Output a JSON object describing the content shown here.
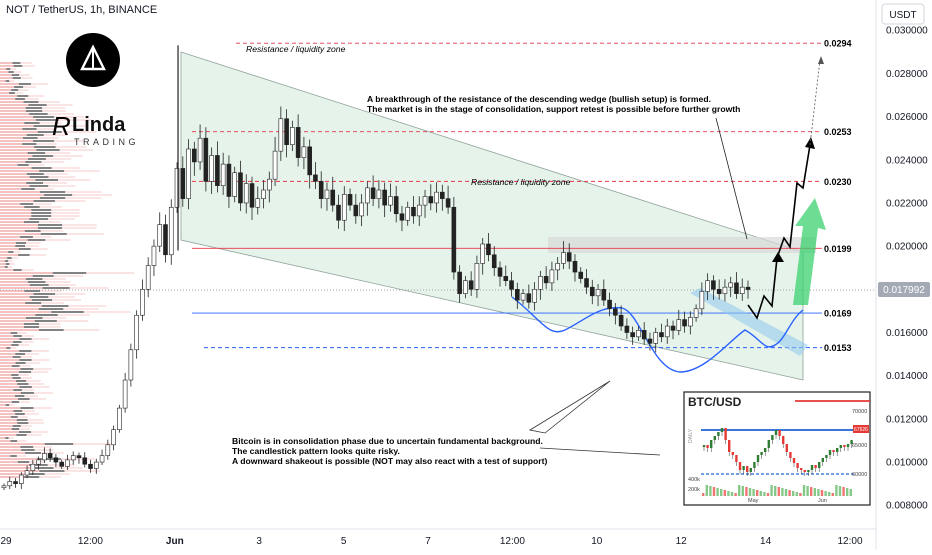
{
  "header": {
    "symbol": "NOT / TetherUS, 1h, BINANCE"
  },
  "currency_badge": "USDT",
  "brand": {
    "name": "Linda",
    "sub": "TRADING"
  },
  "chart_data": {
    "type": "candlestick",
    "title": "NOT / TetherUS, 1h, BINANCE",
    "yaxis": {
      "unit": "USDT",
      "ylim": [
        0.0069,
        0.0314
      ],
      "ticks": [
        "0.030000",
        "0.028000",
        "0.026000",
        "0.024000",
        "0.022000",
        "0.020000",
        "0.018000",
        "0.016000",
        "0.014000",
        "0.012000",
        "0.010000",
        "0.008000"
      ],
      "tick_values": [
        0.03,
        0.028,
        0.026,
        0.024,
        0.022,
        0.02,
        0.018,
        0.016,
        0.014,
        0.012,
        0.01,
        0.008
      ]
    },
    "xaxis": {
      "ticks": [
        "29",
        "12:00",
        "Jun",
        "3",
        "5",
        "7",
        "12:00",
        "10",
        "12",
        "14",
        "12:00"
      ]
    },
    "last_price": "0.017992",
    "levels": [
      {
        "value": 0.0294,
        "label": "0.0294",
        "style": "dashed",
        "color": "#e8374a"
      },
      {
        "value": 0.0253,
        "label": "0.0253",
        "style": "dashed",
        "color": "#e8374a"
      },
      {
        "value": 0.023,
        "label": "0.0230",
        "style": "dashed",
        "color": "#e8374a"
      },
      {
        "value": 0.0199,
        "label": "0.0199",
        "style": "solid",
        "color": "#e8374a"
      },
      {
        "value": 0.0169,
        "label": "0.0169",
        "style": "solid",
        "color": "#2962ff"
      },
      {
        "value": 0.0153,
        "label": "0.0153",
        "style": "dashed",
        "color": "#2962ff"
      }
    ],
    "closes": [
      0.0089,
      0.0091,
      0.009,
      0.0094,
      0.0096,
      0.0099,
      0.0101,
      0.0104,
      0.0102,
      0.01,
      0.0098,
      0.0101,
      0.0103,
      0.0102,
      0.0099,
      0.0097,
      0.01,
      0.0103,
      0.0108,
      0.0115,
      0.0125,
      0.0138,
      0.0152,
      0.0168,
      0.018,
      0.0191,
      0.02,
      0.021,
      0.0196,
      0.0218,
      0.0236,
      0.0222,
      0.0245,
      0.0239,
      0.025,
      0.023,
      0.0242,
      0.0228,
      0.0238,
      0.0223,
      0.0234,
      0.022,
      0.0229,
      0.0218,
      0.0222,
      0.0226,
      0.0231,
      0.0244,
      0.0259,
      0.0247,
      0.0255,
      0.0241,
      0.0246,
      0.0233,
      0.023,
      0.0222,
      0.0226,
      0.0219,
      0.0212,
      0.0224,
      0.0219,
      0.0214,
      0.022,
      0.0227,
      0.0222,
      0.0226,
      0.0219,
      0.0223,
      0.0215,
      0.0212,
      0.0218,
      0.0214,
      0.0219,
      0.0223,
      0.022,
      0.0225,
      0.0222,
      0.0218,
      0.0188,
      0.0178,
      0.0184,
      0.018,
      0.0192,
      0.0201,
      0.0196,
      0.019,
      0.0186,
      0.0184,
      0.018,
      0.0175,
      0.0178,
      0.0174,
      0.018,
      0.0186,
      0.0183,
      0.0189,
      0.0192,
      0.0197,
      0.0193,
      0.0188,
      0.0185,
      0.0181,
      0.0177,
      0.018,
      0.0175,
      0.0171,
      0.0168,
      0.0163,
      0.016,
      0.0158,
      0.0161,
      0.0157,
      0.0155,
      0.016,
      0.0158,
      0.0163,
      0.0161,
      0.0166,
      0.0163,
      0.0167,
      0.0171,
      0.0179,
      0.0184,
      0.018,
      0.0178,
      0.0181,
      0.0183,
      0.0178,
      0.0181,
      0.01799
    ]
  },
  "annotations": {
    "resistance_top": "Resistance / liquidity zone",
    "resistance_mid": "Resistance / liquidity zone",
    "breakthrough": [
      "A breakthrough of the resistance of the descending wedge (bullish setup) is formed.",
      "The market is in the stage of consolidation, support retest is possible before further growth"
    ],
    "bitcoin": [
      "Bitcoin is in consolidation phase due to uncertain fundamental background.",
      "The candlestick pattern looks quite risky.",
      "A downward shakeout is possible (NOT may also react with a test of support)"
    ]
  },
  "inset": {
    "title": "BTC/USD",
    "ticks": [
      "70000",
      "65000",
      "60000",
      "400k",
      "200k"
    ],
    "xticks": [
      "May",
      "Jun"
    ],
    "tag": "67626",
    "side": "DAILY"
  },
  "colors": {
    "up": "#26a69a",
    "down": "#ef5350",
    "resistance": "#e8374a",
    "support": "#2962ff",
    "wedge": "#b3dcc8",
    "arrow": "#3bd16f"
  }
}
